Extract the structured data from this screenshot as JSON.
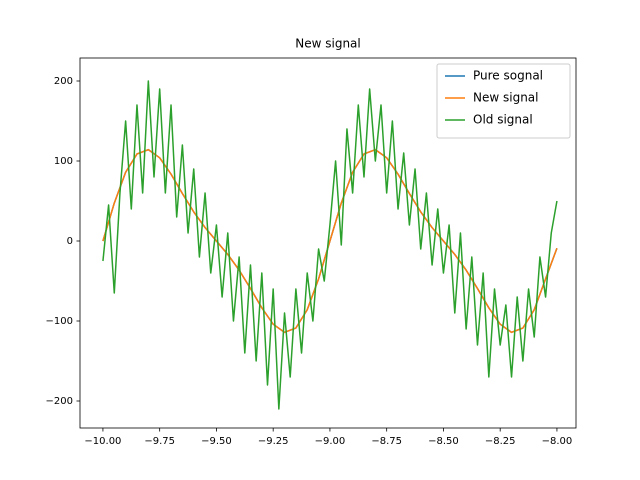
{
  "chart_data": {
    "type": "line",
    "title": "New signal",
    "xlim": [
      -10.101,
      -7.916
    ],
    "ylim": [
      -233.75,
      228.75
    ],
    "xticks": [
      {
        "value": -10,
        "label": "−10.00"
      },
      {
        "value": -9.75,
        "label": "−9.75"
      },
      {
        "value": -9.5,
        "label": "−9.50"
      },
      {
        "value": -9.25,
        "label": "−9.25"
      },
      {
        "value": -9,
        "label": "−9.00"
      },
      {
        "value": -8.75,
        "label": "−8.75"
      },
      {
        "value": -8.5,
        "label": "−8.50"
      },
      {
        "value": -8.25,
        "label": "−8.25"
      },
      {
        "value": -8,
        "label": "−8.00"
      }
    ],
    "yticks": [
      {
        "value": -200,
        "label": "−200"
      },
      {
        "value": -100,
        "label": "−100"
      },
      0,
      100,
      200
    ],
    "legend": "upper right",
    "series": [
      {
        "name": "Pure sognal",
        "color": "#1f77b4",
        "x": [
          -10,
          -9.95,
          -9.9,
          -9.85,
          -9.8,
          -9.75,
          -9.7,
          -9.65,
          -9.6,
          -9.55,
          -9.5,
          -9.45,
          -9.4,
          -9.35,
          -9.3,
          -9.25,
          -9.2,
          -9.15,
          -9.1,
          -9.05,
          -9,
          -8.95,
          -8.9,
          -8.85,
          -8.8,
          -8.75,
          -8.7,
          -8.65,
          -8.6,
          -8.55,
          -8.5,
          -8.45,
          -8.4,
          -8.35,
          -8.3,
          -8.25,
          -8.2,
          -8.15,
          -8.1,
          -8.05,
          -8
        ],
        "values": [
          0,
          47.4,
          85.9,
          108.8,
          114.2,
          104,
          83.6,
          59.4,
          36.4,
          16.8,
          0,
          -16.8,
          -36.4,
          -59.4,
          -83.6,
          -104,
          -114.2,
          -108.8,
          -85.9,
          -47.4,
          0,
          47.4,
          85.9,
          108.8,
          114.2,
          104,
          83.6,
          59.4,
          36.4,
          16.8,
          0,
          -16.8,
          -36.4,
          -59.4,
          -83.6,
          -104,
          -114.2,
          -108.8,
          -85.9,
          -47.4,
          -9
        ]
      },
      {
        "name": "New signal",
        "color": "#ff7f0e",
        "x": [
          -10,
          -9.95,
          -9.9,
          -9.85,
          -9.8,
          -9.75,
          -9.7,
          -9.65,
          -9.6,
          -9.55,
          -9.5,
          -9.45,
          -9.4,
          -9.35,
          -9.3,
          -9.25,
          -9.2,
          -9.15,
          -9.1,
          -9.05,
          -9,
          -8.95,
          -8.9,
          -8.85,
          -8.8,
          -8.75,
          -8.7,
          -8.65,
          -8.6,
          -8.55,
          -8.5,
          -8.45,
          -8.4,
          -8.35,
          -8.3,
          -8.25,
          -8.2,
          -8.15,
          -8.1,
          -8.05,
          -8
        ],
        "values": [
          0,
          47.4,
          85.9,
          108.8,
          114.2,
          104,
          83.6,
          59.4,
          36.4,
          16.8,
          0,
          -16.8,
          -36.4,
          -59.4,
          -83.6,
          -104,
          -114.2,
          -108.8,
          -85.9,
          -47.4,
          0,
          47.4,
          85.9,
          108.8,
          114.2,
          104,
          83.6,
          59.4,
          36.4,
          16.8,
          0,
          -16.8,
          -36.4,
          -59.4,
          -83.6,
          -104,
          -114.2,
          -108.8,
          -85.9,
          -47.4,
          -9
        ]
      },
      {
        "name": "Old signal",
        "color": "#2ca02c",
        "x": [
          -10,
          -9.975,
          -9.95,
          -9.925,
          -9.9,
          -9.875,
          -9.85,
          -9.825,
          -9.8,
          -9.775,
          -9.75,
          -9.725,
          -9.7,
          -9.675,
          -9.65,
          -9.625,
          -9.6,
          -9.575,
          -9.55,
          -9.525,
          -9.5,
          -9.475,
          -9.45,
          -9.425,
          -9.4,
          -9.375,
          -9.35,
          -9.325,
          -9.3,
          -9.275,
          -9.25,
          -9.225,
          -9.2,
          -9.175,
          -9.15,
          -9.125,
          -9.1,
          -9.075,
          -9.05,
          -9.025,
          -9,
          -8.975,
          -8.95,
          -8.925,
          -8.9,
          -8.875,
          -8.85,
          -8.825,
          -8.8,
          -8.775,
          -8.75,
          -8.725,
          -8.7,
          -8.675,
          -8.65,
          -8.625,
          -8.6,
          -8.575,
          -8.55,
          -8.525,
          -8.5,
          -8.475,
          -8.45,
          -8.425,
          -8.4,
          -8.375,
          -8.35,
          -8.325,
          -8.3,
          -8.275,
          -8.25,
          -8.225,
          -8.2,
          -8.175,
          -8.15,
          -8.125,
          -8.1,
          -8.075,
          -8.05,
          -8.025,
          -8
        ],
        "values": [
          -25,
          45,
          -65,
          60,
          150,
          40,
          170,
          60,
          200,
          80,
          190,
          60,
          170,
          30,
          120,
          10,
          90,
          -20,
          60,
          -40,
          20,
          -70,
          10,
          -100,
          -20,
          -140,
          -30,
          -150,
          -40,
          -180,
          -60,
          -210,
          -90,
          -170,
          -60,
          -140,
          -40,
          -100,
          -10,
          -50,
          20,
          100,
          -5,
          140,
          60,
          170,
          80,
          190,
          100,
          170,
          60,
          150,
          40,
          110,
          20,
          90,
          -10,
          60,
          -30,
          40,
          -40,
          20,
          -90,
          10,
          -110,
          -20,
          -130,
          -40,
          -170,
          -60,
          -130,
          -80,
          -170,
          -70,
          -150,
          -60,
          -120,
          -20,
          -70,
          10,
          50
        ]
      }
    ]
  }
}
